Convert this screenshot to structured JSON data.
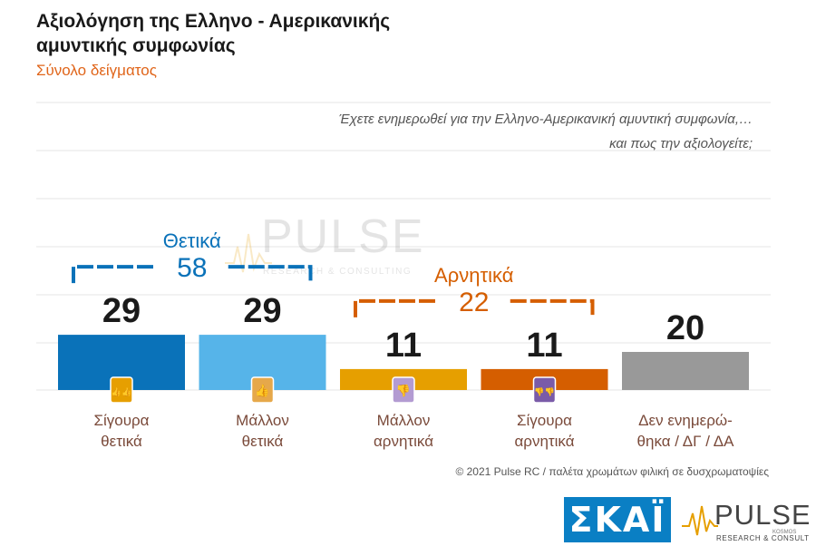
{
  "title": "Αξιολόγηση της Ελληνο - Αμερικανικής αμυντικής συμφωνίας",
  "subtitle": "Σύνολο δείγματος",
  "question_line1": "Έχετε ενημερωθεί για την Ελληνο-Αμερικανική αμυντική συμφωνία,…",
  "question_line2": "και πως την αξιολογείτε;",
  "footer": "© 2021 Pulse RC  /  παλέτα χρωμάτων φιλική σε δυσχρωματοψίες",
  "broadcaster_logo": "ΣΚΑΪ",
  "watermark": {
    "name": "PULSE",
    "tag": "KOSMOS",
    "sub": "RESEARCH & CONSULTING"
  },
  "chart_data": {
    "type": "bar",
    "categories": [
      [
        "Σίγουρα",
        "θετικά"
      ],
      [
        "Μάλλον",
        "θετικά"
      ],
      [
        "Μάλλον",
        "αρνητικά"
      ],
      [
        "Σίγουρα",
        "αρνητικά"
      ],
      [
        "Δεν ενημερώ-",
        "θηκα / ΔΓ / ΔΑ"
      ]
    ],
    "values": [
      29,
      29,
      11,
      11,
      20
    ],
    "colors": [
      "#0a72b9",
      "#56b4e9",
      "#e69f00",
      "#d55e00",
      "#999999"
    ],
    "icons": [
      "two-thumbs-up-icon",
      "thumb-up-icon",
      "thumb-down-icon",
      "two-thumbs-down-icon",
      null
    ],
    "icon_bg": [
      "#e69f00",
      "#e6a84a",
      "#b39bd2",
      "#7a5ba8",
      null
    ],
    "groups": [
      {
        "label": "Θετικά",
        "value": "58",
        "color": "#0a72b9",
        "from": 0,
        "to": 1
      },
      {
        "label": "Αρνητικά",
        "value": "22",
        "color": "#d55e00",
        "from": 2,
        "to": 3
      }
    ],
    "grid": true,
    "ylim": [
      0,
      60
    ]
  }
}
